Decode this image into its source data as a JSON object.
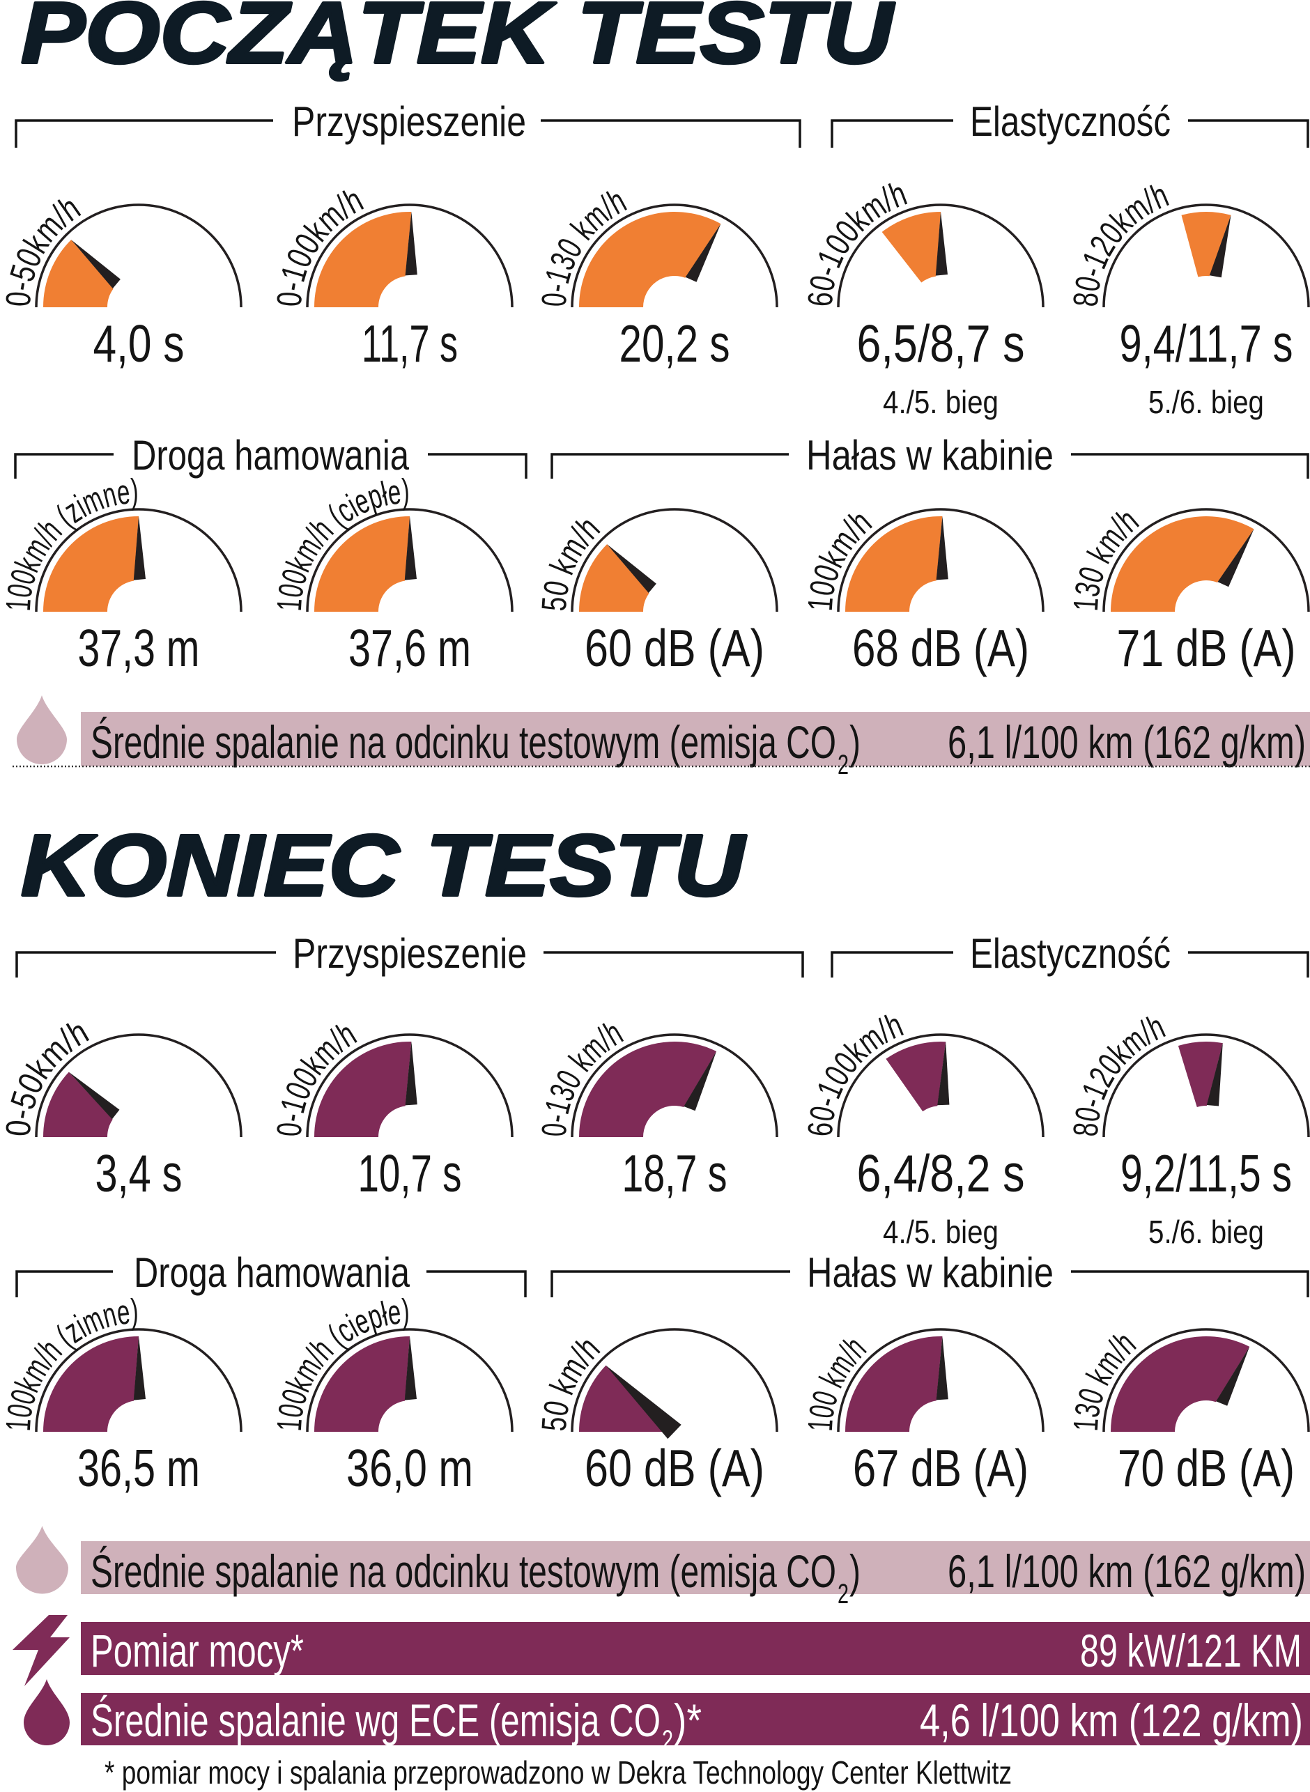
{
  "sections": [
    {
      "title": "POCZĄTEK TESTU",
      "headers": {
        "acceleration": "Przyspieszenie",
        "elasticity": "Elastyczność",
        "braking": "Droga hamowania",
        "noise": "Hałas w kabinie"
      },
      "fuel_test": {
        "icon": "fuel-drop-icon",
        "label": "Średnie spalanie na odcinku testowym (emisja CO",
        "subscript": "2",
        "tail": ")",
        "value": "6,1 l/100 km (162 g/km)"
      }
    },
    {
      "title": "KONIEC TESTU",
      "headers": {
        "acceleration": "Przyspieszenie",
        "elasticity": "Elastyczność",
        "braking": "Droga hamowania",
        "noise": "Hałas w kabinie"
      },
      "fuel_test": {
        "icon": "fuel-drop-icon",
        "label": "Średnie spalanie na odcinku testowym (emisja CO",
        "subscript": "2",
        "tail": ")",
        "value": "6,1 l/100 km (162 g/km)"
      },
      "power": {
        "icon": "lightning-bolt-icon",
        "label": "Pomiar mocy*",
        "value": "89 kW/121 KM"
      },
      "fuel_ece": {
        "icon": "fuel-drop-icon",
        "label": "Średnie spalanie wg ECE (emisja CO",
        "subscript": "2",
        "tail": ")*",
        "value": "4,6 l/100 km (122 g/km)"
      }
    }
  ],
  "footnote": "* pomiar mocy i spalania przeprowadzono w Dekra Technology Center Klettwitz",
  "colors": {
    "start_test": "#f07f33",
    "end_test": "#7f2b57",
    "fuel_bar_light": "#cfb1ba",
    "needle": "#231f20",
    "title": "#0e1b25"
  },
  "chart_data": [
    {
      "type": "gauge",
      "title": "POCZĄTEK TESTU",
      "color": "#f07f33",
      "rows": [
        [
          {
            "group": "Przyspieszenie",
            "label": "0-50km/h",
            "display": "4,0 s",
            "value": 4.0,
            "unit": "s",
            "arc_deg": [
              180,
              135
            ]
          },
          {
            "group": "Przyspieszenie",
            "label": "0-100km/h",
            "display": "11,7 s",
            "value": 11.7,
            "unit": "s",
            "arc_deg": [
              180,
              89
            ]
          },
          {
            "group": "Przyspieszenie",
            "label": "0-130 km/h",
            "display": "20,2 s",
            "value": 20.2,
            "unit": "s",
            "arc_deg": [
              180,
              61
            ]
          },
          {
            "group": "Elastyczność",
            "label": "60-100km/h",
            "display": "6,5/8,7 s",
            "value": [
              6.5,
              8.7
            ],
            "unit": "s",
            "gear": "4./5. bieg",
            "arc_deg": [
              128,
              90
            ]
          },
          {
            "group": "Elastyczność",
            "label": "80-120km/h",
            "display": "9,4/11,7 s",
            "value": [
              9.4,
              11.7
            ],
            "unit": "s",
            "gear": "5./6. bieg",
            "arc_deg": [
              105,
              75
            ]
          }
        ],
        [
          {
            "group": "Droga hamowania",
            "label": "100km/h (zimne)",
            "display": "37,3 m",
            "value": 37.3,
            "unit": "m",
            "arc_deg": [
              180,
              90
            ]
          },
          {
            "group": "Droga hamowania",
            "label": "100km/h (ciepłe)",
            "display": "37,6 m",
            "value": 37.6,
            "unit": "m",
            "arc_deg": [
              180,
              90
            ]
          },
          {
            "group": "Hałas w kabinie",
            "label": "50 km/h",
            "display": "60 dB (A)",
            "value": 60,
            "unit": "dB (A)",
            "arc_deg": [
              180,
              135
            ]
          },
          {
            "group": "Hałas w kabinie",
            "label": "100km/h",
            "display": "68 dB (A)",
            "value": 68,
            "unit": "dB (A)",
            "arc_deg": [
              180,
              89
            ]
          },
          {
            "group": "Hałas w kabinie",
            "label": "130 km/h",
            "display": "71 dB (A)",
            "value": 71,
            "unit": "dB (A)",
            "arc_deg": [
              180,
              60
            ]
          }
        ]
      ]
    },
    {
      "type": "gauge",
      "title": "KONIEC TESTU",
      "color": "#7f2b57",
      "rows": [
        [
          {
            "group": "Przyspieszenie",
            "label": "0-50km/h",
            "display": "3,4 s",
            "value": 3.4,
            "unit": "s",
            "arc_deg": [
              180,
              137
            ]
          },
          {
            "group": "Przyspieszenie",
            "label": "0-100km/h",
            "display": "10,7 s",
            "value": 10.7,
            "unit": "s",
            "arc_deg": [
              180,
              89
            ]
          },
          {
            "group": "Przyspieszenie",
            "label": "0-130 km/h",
            "display": "18,7 s",
            "value": 18.7,
            "unit": "s",
            "arc_deg": [
              180,
              64
            ]
          },
          {
            "group": "Elastyczność",
            "label": "60-100km/h",
            "display": "6,4/8,2 s",
            "value": [
              6.4,
              8.2
            ],
            "unit": "s",
            "gear": "4./5. bieg",
            "arc_deg": [
              125,
              87
            ]
          },
          {
            "group": "Elastyczność",
            "label": "80-120km/h",
            "display": "9,2/11,5 s",
            "value": [
              9.2,
              11.5
            ],
            "unit": "s",
            "gear": "5./6. bieg",
            "arc_deg": [
              107,
              80
            ]
          }
        ],
        [
          {
            "group": "Droga hamowania",
            "label": "100km/h (zimne)",
            "display": "36,5 m",
            "value": 36.5,
            "unit": "m",
            "arc_deg": [
              180,
              90
            ]
          },
          {
            "group": "Droga hamowania",
            "label": "100km/h (ciepłe)",
            "display": "36,0 m",
            "value": 36.0,
            "unit": "m",
            "arc_deg": [
              180,
              90
            ]
          },
          {
            "group": "Hałas w kabinie",
            "label": "50 km/h",
            "display": "60 dB (A)",
            "value": 60,
            "unit": "dB (A)",
            "arc_deg": [
              180,
              136
            ],
            "inner_radius": 0
          },
          {
            "group": "Hałas w kabinie",
            "label": "100 km/h",
            "display": "67 dB (A)",
            "value": 67,
            "unit": "dB (A)",
            "arc_deg": [
              180,
              89
            ]
          },
          {
            "group": "Hałas w kabinie",
            "label": "130 km/h",
            "display": "70 dB (A)",
            "value": 70,
            "unit": "dB (A)",
            "arc_deg": [
              180,
              63
            ]
          }
        ]
      ]
    }
  ]
}
